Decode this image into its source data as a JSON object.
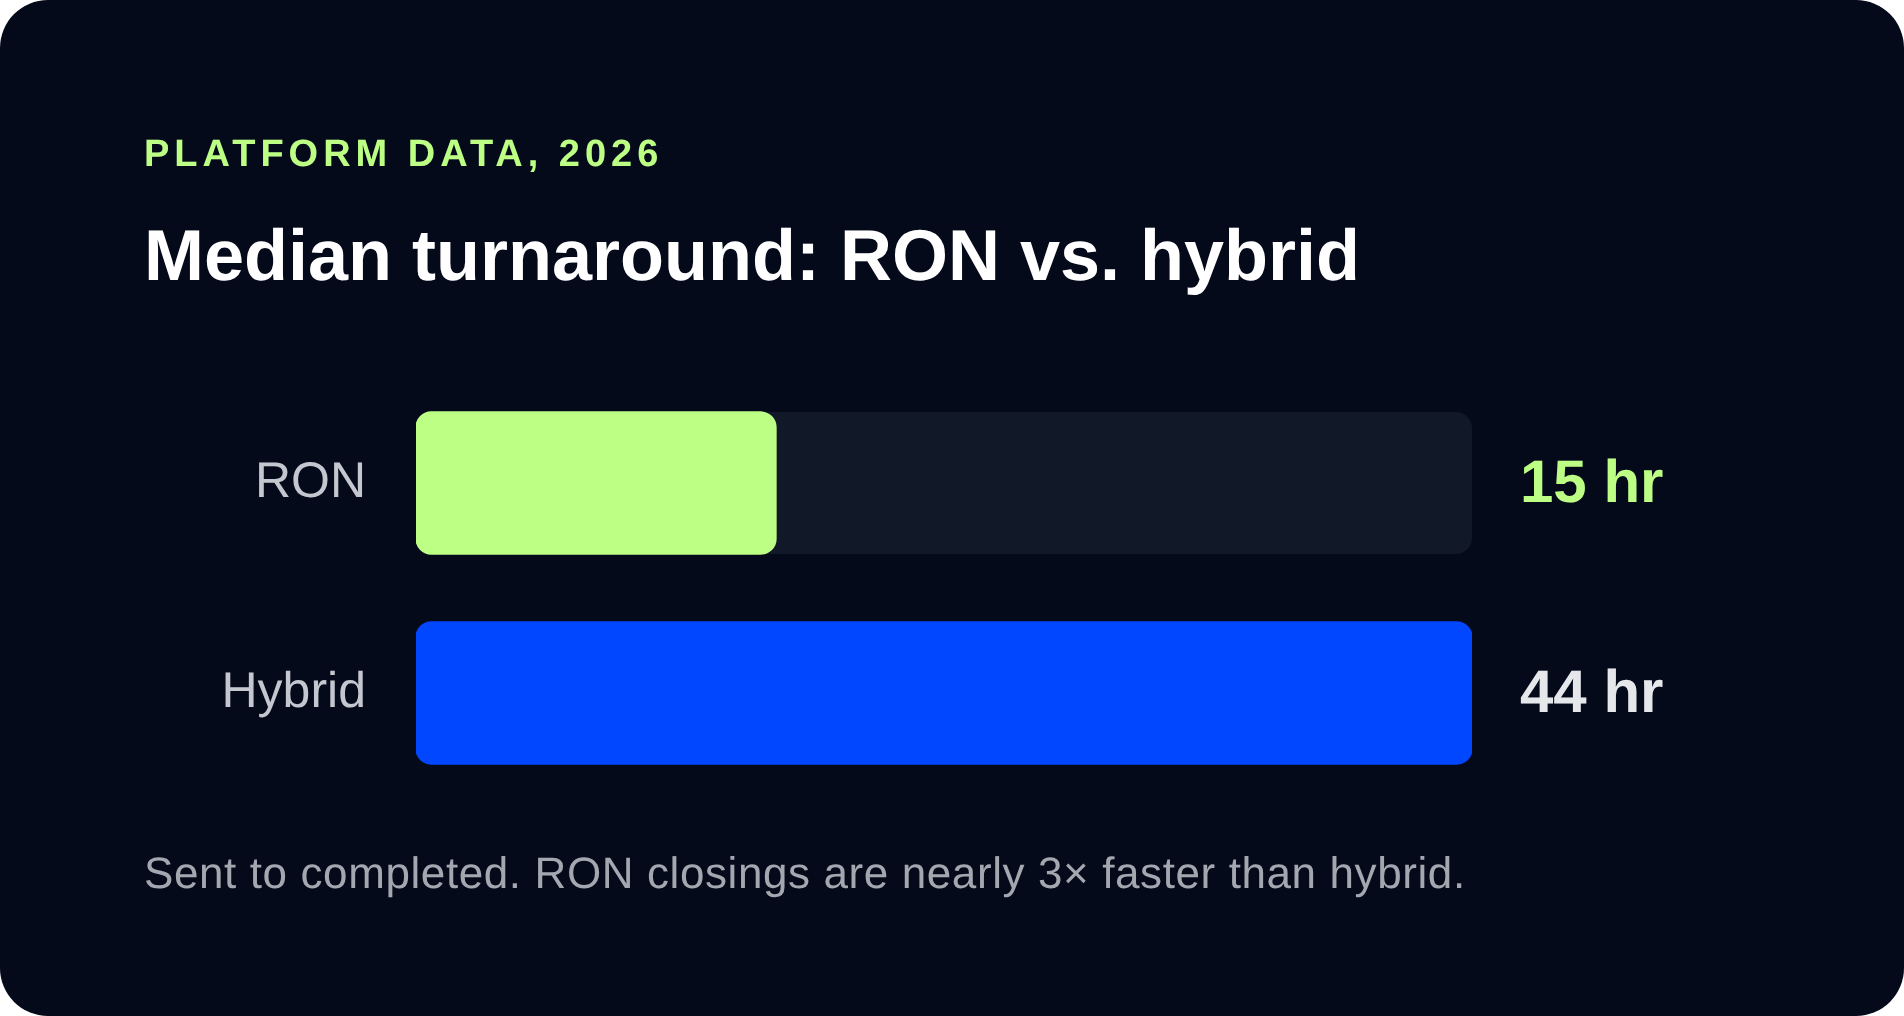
{
  "chart_data": {
    "type": "bar",
    "orientation": "horizontal",
    "subtitle": "PLATFORM DATA, 2026",
    "title": "Median turnaround: RON vs. hybrid",
    "categories": [
      "RON",
      "Hybrid"
    ],
    "values": [
      15,
      44
    ],
    "colors": [
      "#bcff84",
      "#0047ff"
    ],
    "value_labels": [
      "15 hr",
      "44 hr"
    ],
    "xlim": [
      0,
      44
    ],
    "tick_labels": "y",
    "legend": false,
    "annotations": [
      "Sent to completed. RON closings are nearly 3× faster than hybrid."
    ]
  }
}
